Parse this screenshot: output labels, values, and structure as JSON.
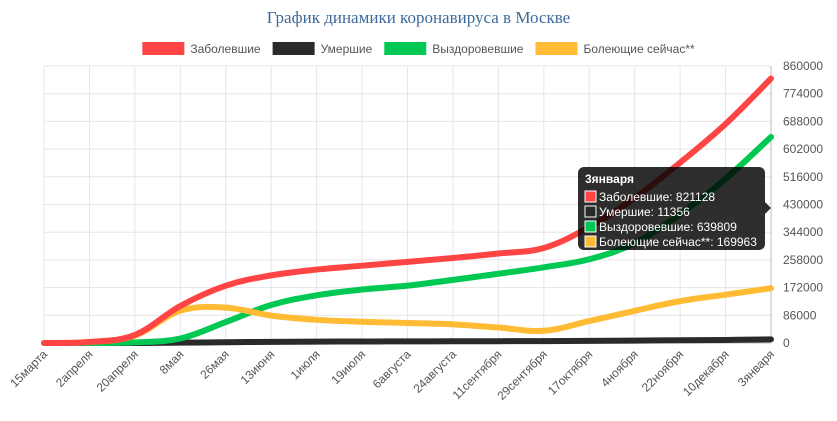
{
  "chart_data": {
    "type": "line",
    "title": "График динамики коронавируса в Москве",
    "categories": [
      "15марта",
      "2апреля",
      "20апреля",
      "8мая",
      "26мая",
      "13июня",
      "1июля",
      "19июля",
      "6августа",
      "24августа",
      "11сентября",
      "29сентября",
      "17октября",
      "4ноября",
      "22ноября",
      "10декабря",
      "3января"
    ],
    "y_ticks": [
      "860000",
      "774000",
      "688000",
      "602000",
      "516000",
      "430000",
      "344000",
      "258000",
      "172000",
      "86000",
      "0"
    ],
    "ylim": [
      0,
      860000
    ],
    "legend_position": "top",
    "grid": true,
    "series": [
      {
        "name": "Заболевшие",
        "color": "#ff4444",
        "values": [
          0,
          3000,
          25000,
          115000,
          178000,
          210000,
          228000,
          240000,
          252000,
          264000,
          278000,
          295000,
          360000,
          450000,
          560000,
          680000,
          821128
        ]
      },
      {
        "name": "Умершие",
        "color": "#2a2a2a",
        "values": [
          0,
          0,
          100,
          1000,
          2500,
          3500,
          4200,
          4700,
          5000,
          5300,
          5600,
          5900,
          6500,
          7500,
          8500,
          9500,
          11356
        ]
      },
      {
        "name": "Выздоровевшие",
        "color": "#00c853",
        "values": [
          0,
          0,
          2000,
          14000,
          65000,
          118000,
          148000,
          166000,
          178000,
          196000,
          215000,
          235000,
          260000,
          310000,
          400000,
          510000,
          639809
        ]
      },
      {
        "name": "Болеющие сейчас**",
        "color": "#ffbb33",
        "values": [
          0,
          3000,
          23000,
          100000,
          110000,
          85000,
          72000,
          66000,
          62000,
          58000,
          48000,
          38000,
          68000,
          100000,
          130000,
          150000,
          169963
        ]
      }
    ],
    "tooltip": {
      "title": "3января",
      "lines": [
        {
          "label": "Заболевшие: 821128",
          "color": "#ff4444"
        },
        {
          "label": "Умершие: 11356",
          "color": "#2a2a2a"
        },
        {
          "label": "Выздоровевшие: 639809",
          "color": "#00c853"
        },
        {
          "label": "Болеющие сейчас**: 169963",
          "color": "#ffbb33"
        }
      ]
    }
  }
}
